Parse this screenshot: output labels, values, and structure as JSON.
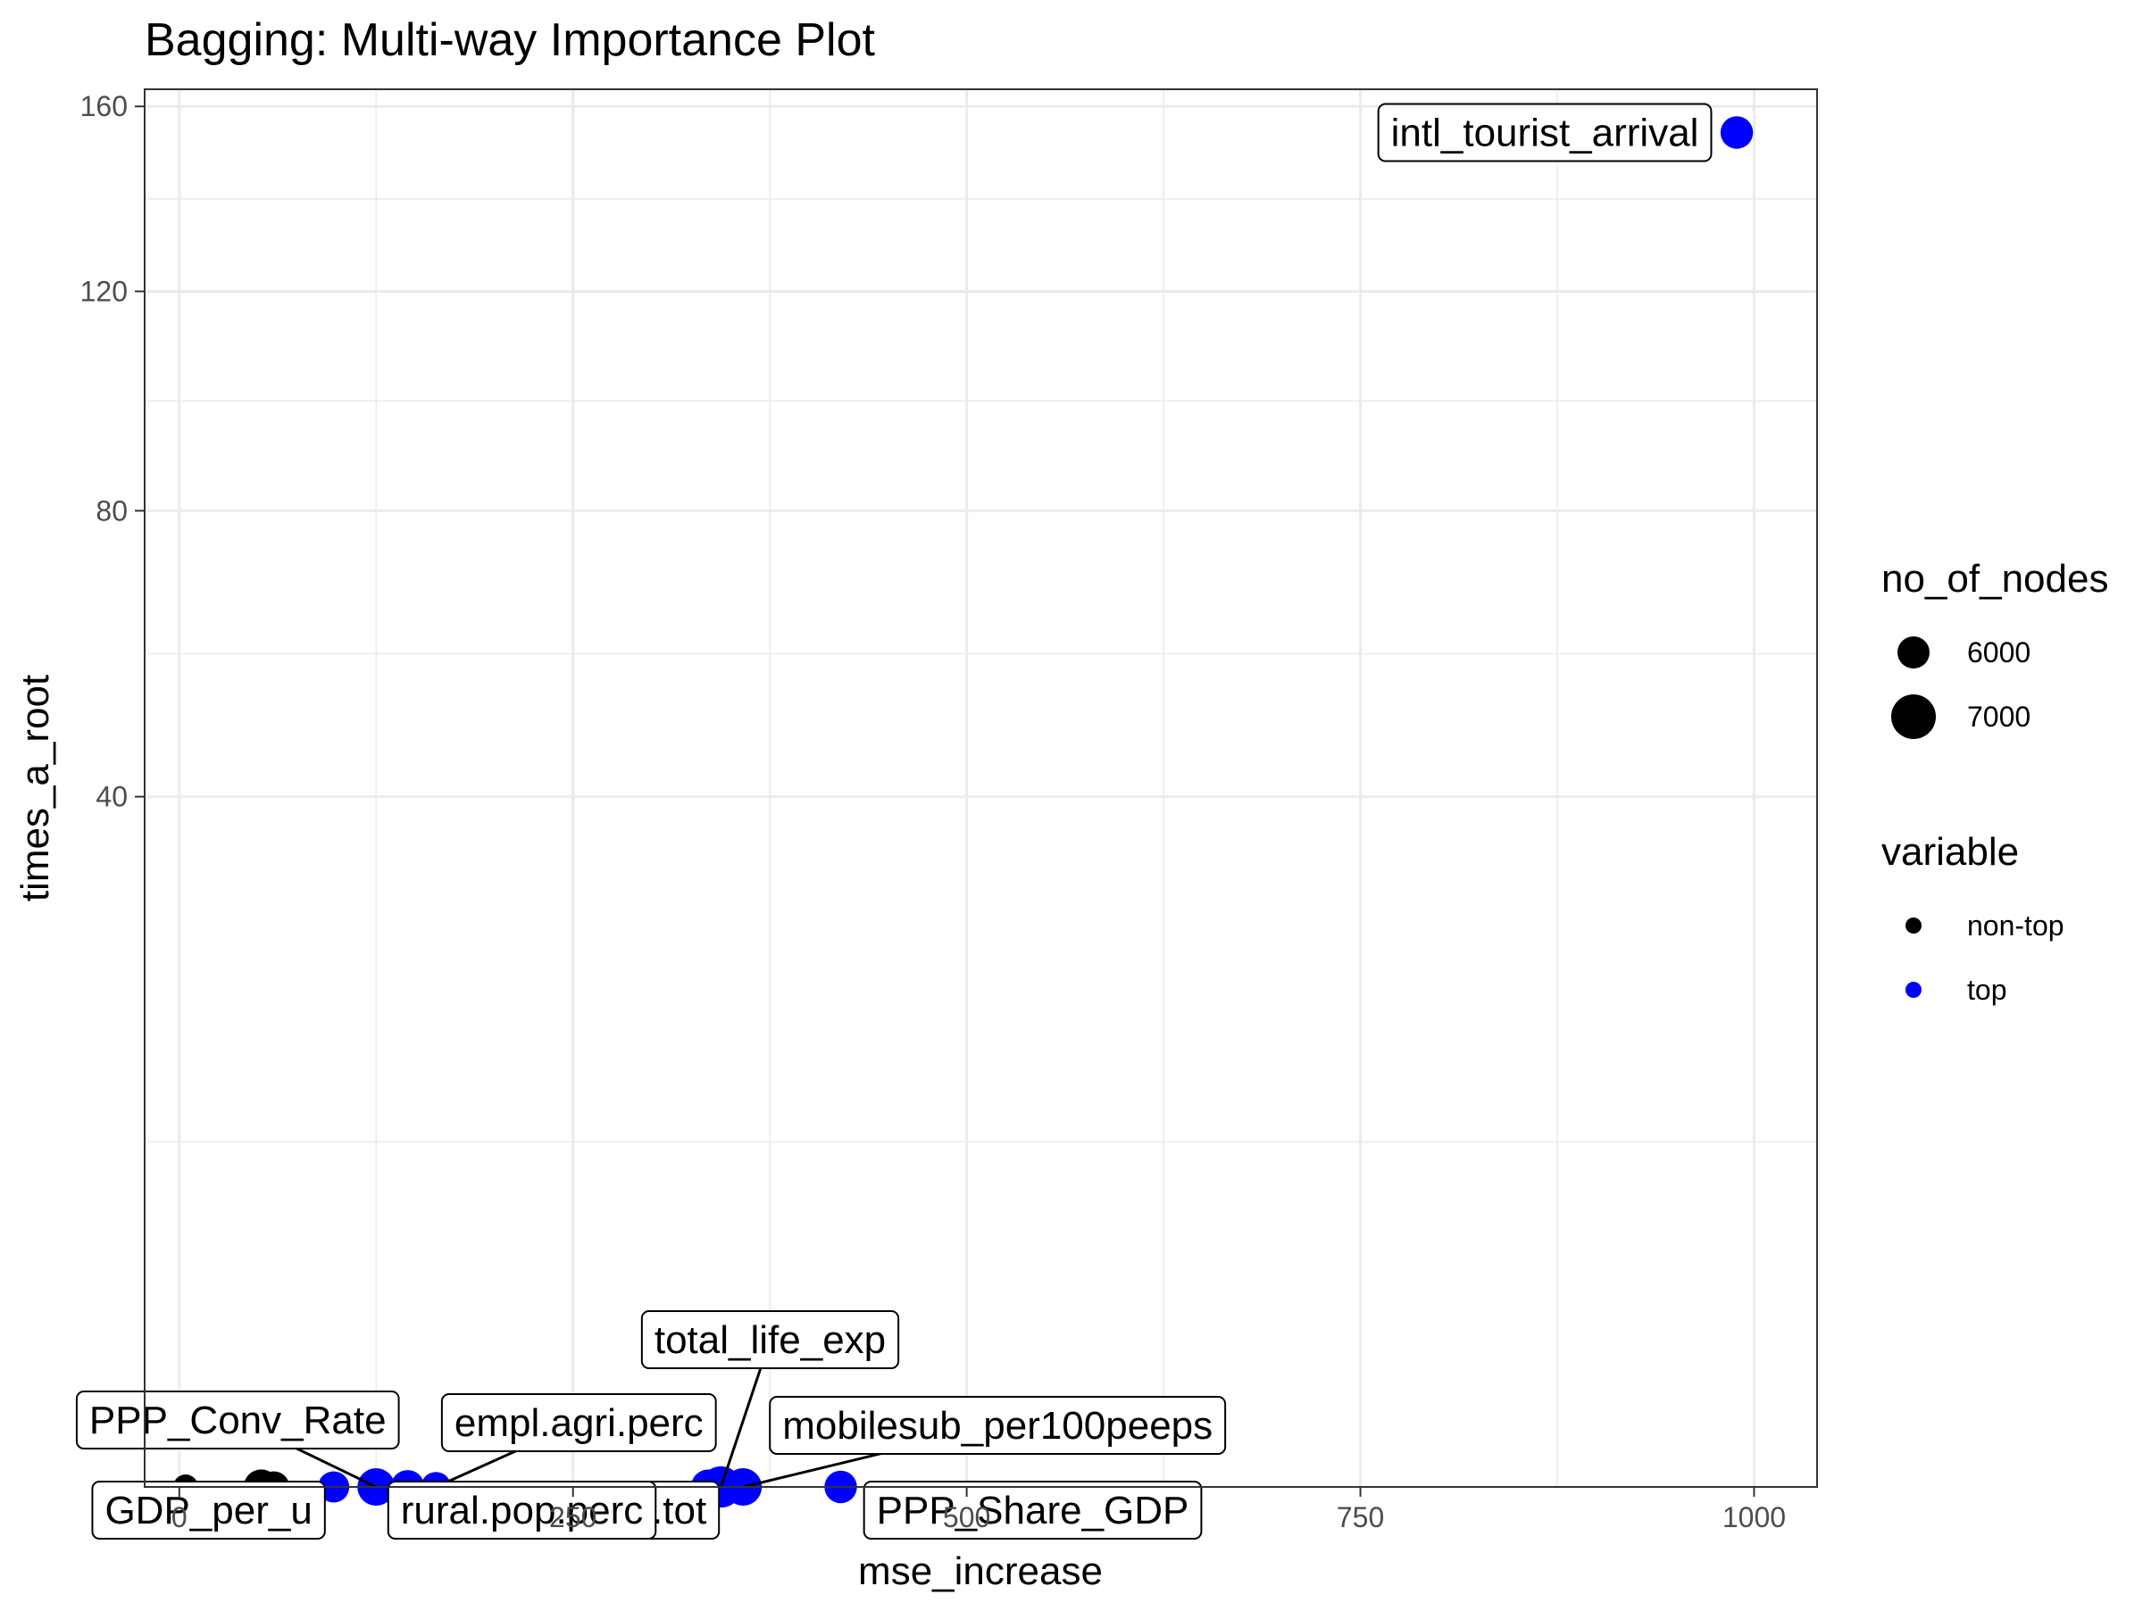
{
  "chart_data": {
    "type": "scatter",
    "title": "Bagging: Multi-way Importance Plot",
    "xlabel": "mse_increase",
    "ylabel": "times_a_root",
    "xlim": [
      -22,
      1040
    ],
    "ylim": [
      0,
      164
    ],
    "y_scale": "sqrt",
    "x_ticks": [
      0,
      250,
      500,
      750,
      1000
    ],
    "y_ticks": [
      40,
      80,
      120,
      160
    ],
    "grid": true,
    "legend_position": "right",
    "colors": {
      "top": "#0000ff",
      "non-top": "#000000"
    },
    "size_legend": {
      "title": "no_of_nodes",
      "entries": [
        {
          "label": "6000",
          "value": 6000
        },
        {
          "label": "7000",
          "value": 7000
        }
      ]
    },
    "color_legend": {
      "title": "variable",
      "entries": [
        {
          "label": "non-top",
          "key": "non-top"
        },
        {
          "label": "top",
          "key": "top"
        }
      ]
    },
    "points": [
      {
        "x": 989,
        "y": 154,
        "nodes": 6600,
        "group": "top",
        "label": "intl_tourist_arrival"
      },
      {
        "x": 420,
        "y": 0,
        "nodes": 6600,
        "group": "top",
        "label": "PPP_Share_GDP"
      },
      {
        "x": 358,
        "y": 0,
        "nodes": 7000,
        "group": "top",
        "label": "mobilesub_per100peeps"
      },
      {
        "x": 344,
        "y": 0,
        "nodes": 7300,
        "group": "top",
        "label": "total_life_exp"
      },
      {
        "x": 336,
        "y": 0,
        "nodes": 6800,
        "group": "top",
        "label": "p.tot"
      },
      {
        "x": 163,
        "y": 0,
        "nodes": 6400,
        "group": "top",
        "label": "empl.agri.perc"
      },
      {
        "x": 145,
        "y": 0,
        "nodes": 6700,
        "group": "top",
        "label": "rural.pop.perc"
      },
      {
        "x": 125,
        "y": 0,
        "nodes": 7000,
        "group": "top",
        "label": "PPP_Conv_Rate"
      },
      {
        "x": 98,
        "y": 0,
        "nodes": 6500,
        "group": "top",
        "label": "GDP_per_u"
      },
      {
        "x": 52,
        "y": 0,
        "nodes": 6800,
        "group": "non-top",
        "label": ""
      },
      {
        "x": 60,
        "y": 0,
        "nodes": 6500,
        "group": "non-top",
        "label": ""
      },
      {
        "x": 4,
        "y": 0,
        "nodes": 6000,
        "group": "non-top",
        "label": ""
      }
    ]
  }
}
